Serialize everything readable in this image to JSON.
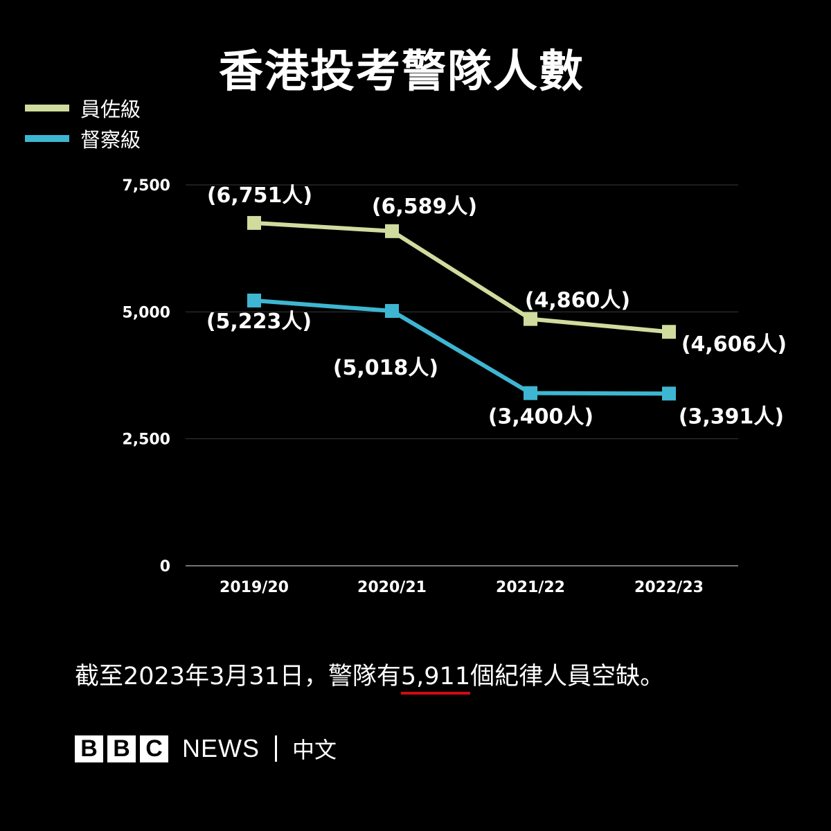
{
  "title": "香港投考警隊人數",
  "legend": [
    {
      "label": "員佐級",
      "color": "#cfdc9e"
    },
    {
      "label": "督察級",
      "color": "#3eb6d2"
    }
  ],
  "chart_data": {
    "type": "line",
    "title": "香港投考警隊人數",
    "categories": [
      "2019/20",
      "2020/21",
      "2021/22",
      "2022/23"
    ],
    "series": [
      {
        "name": "員佐級",
        "color": "#cfdc9e",
        "values": [
          6751,
          6589,
          4860,
          4606
        ],
        "labels": [
          "(6,751人)",
          "(6,589人)",
          "(4,860人)",
          "(4,606人)"
        ]
      },
      {
        "name": "督察級",
        "color": "#3eb6d2",
        "values": [
          5223,
          5018,
          3400,
          3391
        ],
        "labels": [
          "(5,223人)",
          "(5,018人)",
          "(3,400人)",
          "(3,391人)"
        ]
      }
    ],
    "yticks": [
      0,
      2500,
      5000,
      7500
    ],
    "ytick_labels": [
      "0",
      "2,500",
      "5,000",
      "7,500"
    ],
    "ylim": [
      0,
      7500
    ],
    "grid": true,
    "legend_position": "top-left",
    "xlabel": "",
    "ylabel": ""
  },
  "footnote": {
    "prefix": "截至2023年3月31日，警隊有",
    "highlight": "5,911",
    "suffix": "個紀律人員空缺。"
  },
  "brand": {
    "letters": [
      "B",
      "B",
      "C"
    ],
    "news": "NEWS",
    "chinese": "中文"
  }
}
